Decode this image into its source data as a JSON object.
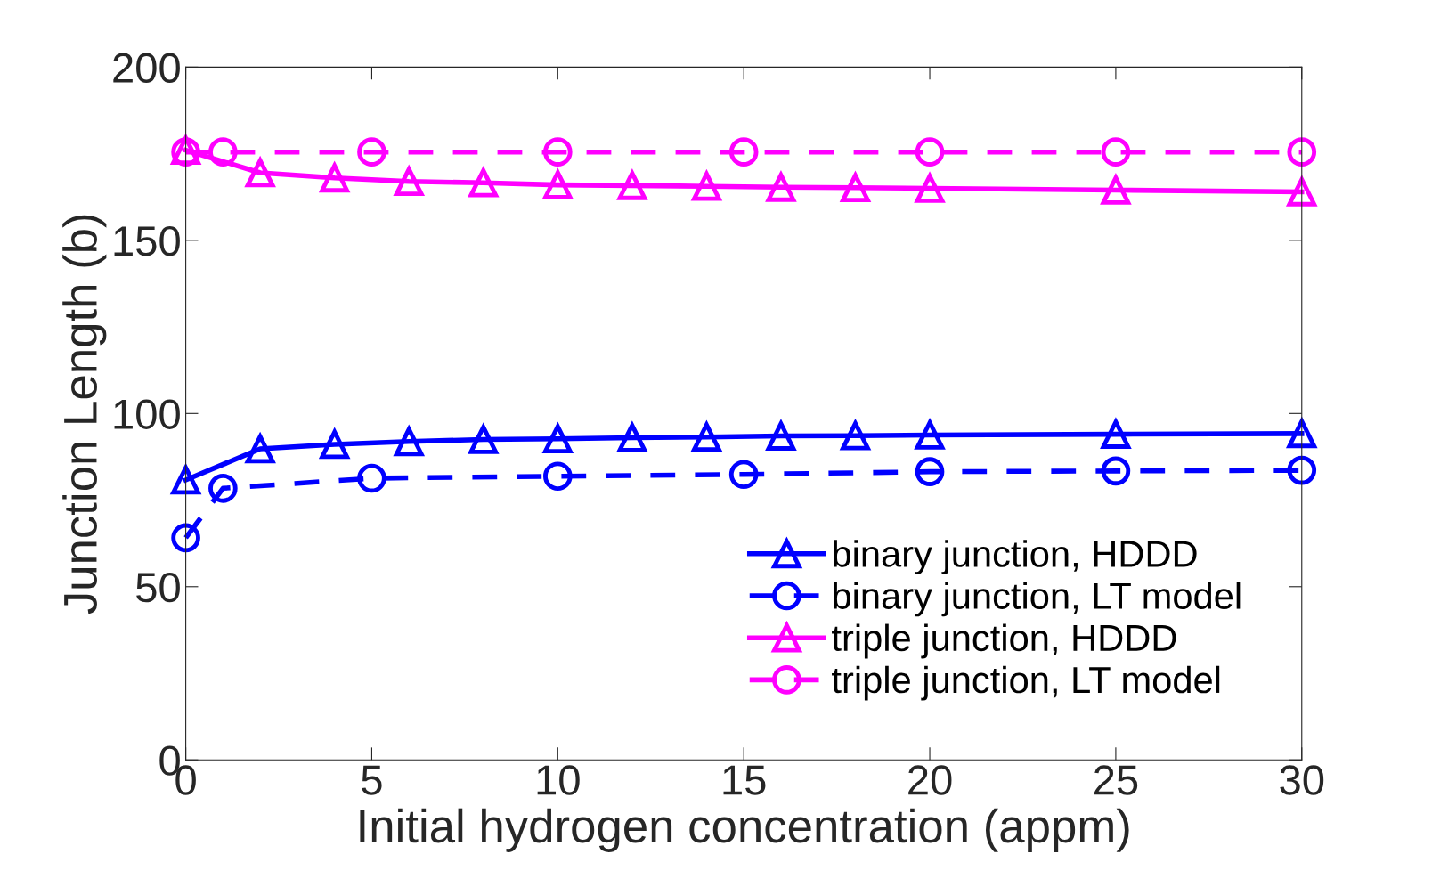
{
  "chart_data": {
    "type": "line",
    "xlabel": "Initial hydrogen concentration (appm)",
    "ylabel": "Junction Length (b)",
    "xlim": [
      0,
      30
    ],
    "ylim": [
      0,
      200
    ],
    "xticks": [
      0,
      5,
      10,
      15,
      20,
      25,
      30
    ],
    "yticks": [
      0,
      50,
      100,
      150,
      200
    ],
    "grid": false,
    "legend": "bottom right",
    "series": [
      {
        "name": "binary junction, HDDD",
        "color": "#0000ff",
        "marker": "triangle",
        "line_style": "solid",
        "x": [
          0,
          2,
          4,
          6,
          8,
          10,
          12,
          14,
          16,
          18,
          20,
          25,
          30
        ],
        "values": [
          80.8,
          89.8,
          91.1,
          91.9,
          92.5,
          92.7,
          93.0,
          93.2,
          93.5,
          93.6,
          93.8,
          94.0,
          94.2
        ]
      },
      {
        "name": "binary junction, LT model",
        "color": "#0000ff",
        "marker": "circle",
        "line_style": "dashed",
        "x": [
          0,
          1,
          5,
          10,
          15,
          20,
          25,
          30
        ],
        "values": [
          64.1,
          78.4,
          81.3,
          81.9,
          82.4,
          83.2,
          83.4,
          83.6
        ]
      },
      {
        "name": "triple junction, HDDD",
        "color": "#ff00ff",
        "marker": "triangle",
        "line_style": "solid",
        "x": [
          0,
          2,
          4,
          6,
          8,
          10,
          12,
          14,
          16,
          18,
          20,
          25,
          30
        ],
        "values": [
          176,
          169.5,
          168,
          167,
          166.6,
          166,
          165.8,
          165.6,
          165.3,
          165.2,
          165,
          164.5,
          164
        ]
      },
      {
        "name": "triple junction, LT model",
        "color": "#ff00ff",
        "marker": "circle",
        "line_style": "dashed",
        "x": [
          0,
          1,
          5,
          10,
          15,
          20,
          25,
          30
        ],
        "values": [
          175.5,
          175.5,
          175.5,
          175.5,
          175.5,
          175.5,
          175.5,
          175.5
        ]
      }
    ]
  }
}
